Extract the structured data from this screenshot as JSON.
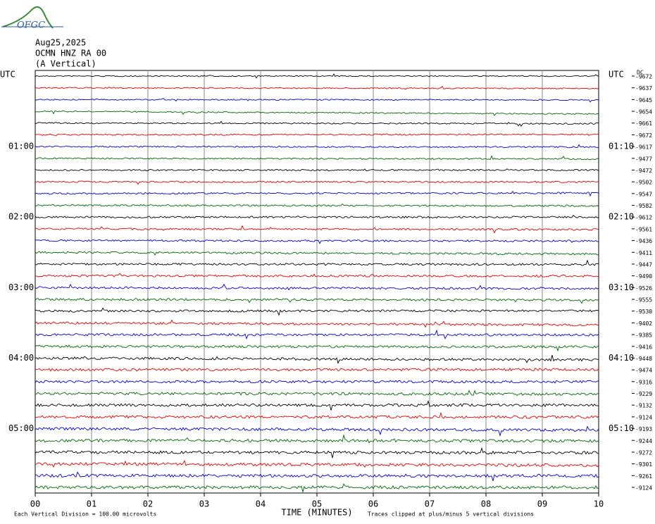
{
  "logo": "OFGC",
  "header": {
    "date": "Aug25,2025",
    "station": "OCMN HNZ RA 00",
    "component": "(A Vertical)"
  },
  "left_labels": [
    "UTC",
    "01:00",
    "02:00",
    "03:00",
    "04:00",
    "05:00"
  ],
  "right_labels": [
    "UTC",
    "01:10",
    "02:10",
    "03:10",
    "04:10",
    "05:10"
  ],
  "dc_header": "DC",
  "dc_values": [
    -9672,
    -9637,
    -9645,
    -9654,
    -9661,
    -9672,
    -9617,
    -9477,
    -9472,
    -9502,
    -9547,
    -9582,
    -9612,
    -9561,
    -9436,
    -9411,
    -9447,
    -9490,
    -9526,
    -9555,
    -9530,
    -9402,
    -9385,
    -9416,
    -9448,
    -9474,
    -9316,
    -9229,
    -9132,
    -9124,
    -9193,
    -9244,
    -9272,
    -9301,
    -9261,
    -9124
  ],
  "x_ticks": [
    "00",
    "01",
    "02",
    "03",
    "04",
    "05",
    "06",
    "07",
    "08",
    "09",
    "10"
  ],
  "x_axis_title": "TIME (MINUTES)",
  "note_left": "Each Vertical Division =  100.00 microvolts",
  "note_right": "Traces clipped at plus/minus 5 vertical divisions"
}
